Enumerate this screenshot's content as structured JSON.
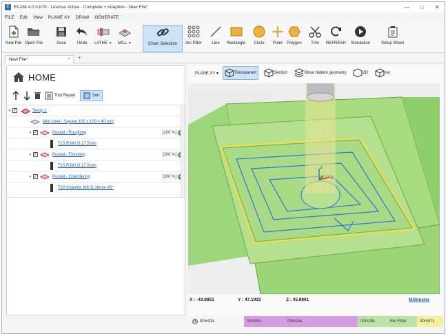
{
  "window": {
    "title": "ECAM 4.0.0.870 - License Active - Complete + Adaptive - New File*",
    "controls": [
      "minimize-icon",
      "maximize-icon",
      "close-icon"
    ]
  },
  "menu": [
    "FILE",
    "Edit",
    "View",
    "PLANE XY",
    "DRAW",
    "GENERATE"
  ],
  "ribbon": {
    "new_file": "New File",
    "open_file": "Open File",
    "save": "Save",
    "undo": "Undo",
    "lathe": "LATHE",
    "mill": "MILL",
    "chain_selection": "Chain Selection",
    "arc_filter": "Arc Filter",
    "line": "Line",
    "rectangle": "Rectangle",
    "circle": "Circle",
    "point": "Point",
    "polygon": "Polygon",
    "trim": "Trim",
    "refresh": "REFRESH",
    "simulation": "Simulation",
    "setup_sheet": "Setup Sheet"
  },
  "tabs": {
    "doc_tab": "New File*",
    "close": "×",
    "add": "+"
  },
  "left": {
    "home": "HOME",
    "tool_report": "Tool Report",
    "sort": "Sort",
    "tree": [
      {
        "label": "Setup 1",
        "pct": ""
      },
      {
        "label": "Mild steel - Square 100 x 100 x 40 mm",
        "pct": ""
      },
      {
        "label": "Pocket - Roughing",
        "pct": "[100 %]"
      },
      {
        "label": "T15 R390 D 17.5mm",
        "pct": ""
      },
      {
        "label": "Pocket - Finishing",
        "pct": "[100 %]"
      },
      {
        "label": "T15 R390 D 17.5mm",
        "pct": ""
      },
      {
        "label": "Pocket - Chamfering",
        "pct": "[100 %]"
      },
      {
        "label": "T20 Chamfer Mill D 16mm 45°",
        "pct": ""
      }
    ]
  },
  "viewtoolbar": {
    "plane": "PLANE XY",
    "transparent": "Transparent",
    "section": "Section",
    "hidden": "Show hidden geometry",
    "view2d": "2D",
    "iso": "Iso"
  },
  "coords": {
    "x": "X : -43.8851",
    "y": "Y : 47.1932",
    "z": "Z : 45.8861",
    "units": "Millimeter"
  },
  "timeline": {
    "total": "00m33s",
    "seg1": "00m00s",
    "seg2": "00m14s",
    "seg3": "00m28s",
    "seg4": "00m57s",
    "end_label": "Ele Filter",
    "colors": [
      "#d69be0",
      "#b9e4a6",
      "#f7ef9e"
    ]
  }
}
